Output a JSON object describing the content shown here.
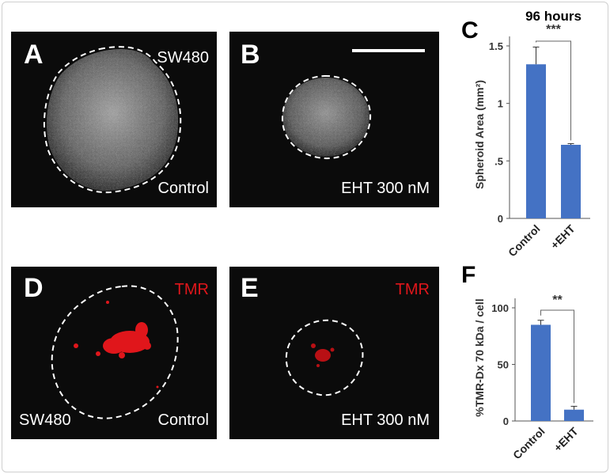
{
  "panels": {
    "A": {
      "letter": "A",
      "cell_line": "SW480",
      "condition": "Control"
    },
    "B": {
      "letter": "B",
      "condition": "EHT 300 nM"
    },
    "D": {
      "letter": "D",
      "stain": "TMR",
      "cell_line": "SW480",
      "condition": "Control"
    },
    "E": {
      "letter": "E",
      "stain": "TMR",
      "condition": "EHT 300 nM"
    }
  },
  "colors": {
    "bar": "#4472c4",
    "stain": "#e0161b"
  },
  "chart_data": [
    {
      "panel": "C",
      "type": "bar",
      "title": "96 hours",
      "ylabel": "Spheroid Area (mm²)",
      "categories": [
        "Control",
        "+EHT"
      ],
      "values": [
        1.34,
        0.64
      ],
      "errors": [
        0.15,
        0.01
      ],
      "ylim": [
        0,
        1.5
      ],
      "yticks": [
        0,
        0.5,
        1,
        1.5
      ],
      "ytick_labels": [
        "0",
        ".5",
        "1",
        "1.5"
      ],
      "significance": "***"
    },
    {
      "panel": "F",
      "type": "bar",
      "title": "",
      "ylabel": "%TMR-Dx 70 kDa / cell",
      "categories": [
        "Control",
        "+EHT"
      ],
      "values": [
        85,
        10
      ],
      "errors": [
        4,
        3
      ],
      "ylim": [
        0,
        100
      ],
      "yticks": [
        0,
        50,
        100
      ],
      "ytick_labels": [
        "0",
        "50",
        "100"
      ],
      "significance": "**"
    }
  ]
}
